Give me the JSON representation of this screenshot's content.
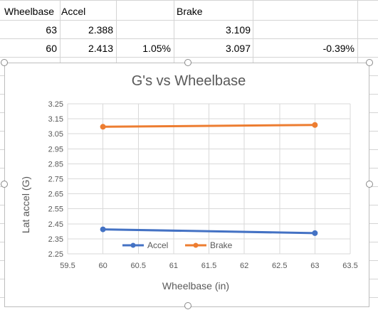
{
  "sheet": {
    "rows": [
      {
        "wheelbase": "Wheelbase",
        "accel": "Accel",
        "accel_pct": "",
        "brake": "Brake",
        "brake_pct": ""
      },
      {
        "wheelbase": "63",
        "accel": "2.388",
        "accel_pct": "",
        "brake": "3.109",
        "brake_pct": ""
      },
      {
        "wheelbase": "60",
        "accel": "2.413",
        "accel_pct": "1.05%",
        "brake": "3.097",
        "brake_pct": "-0.39%"
      }
    ]
  },
  "colors": {
    "accel": "#4472C4",
    "brake": "#ED7D31",
    "gridline": "#d9d9d9",
    "title": "#595959"
  },
  "chart_data": {
    "type": "line",
    "title": "G's vs Wheelbase",
    "xlabel": "Wheelbase (in)",
    "ylabel": "Lat accel (G)",
    "xlim": [
      59.5,
      63.5
    ],
    "ylim": [
      2.25,
      3.25
    ],
    "x_ticks": [
      "59.5",
      "60",
      "60.5",
      "61",
      "61.5",
      "62",
      "62.5",
      "63",
      "63.5"
    ],
    "y_ticks": [
      "2.25",
      "2.35",
      "2.45",
      "2.55",
      "2.65",
      "2.75",
      "2.85",
      "2.95",
      "3.05",
      "3.15",
      "3.25"
    ],
    "legend_position": "bottom-inside",
    "grid": true,
    "series": [
      {
        "name": "Accel",
        "color": "#4472C4",
        "points": [
          [
            60,
            2.413
          ],
          [
            63,
            2.388
          ]
        ]
      },
      {
        "name": "Brake",
        "color": "#ED7D31",
        "points": [
          [
            60,
            3.097
          ],
          [
            63,
            3.109
          ]
        ]
      }
    ]
  }
}
